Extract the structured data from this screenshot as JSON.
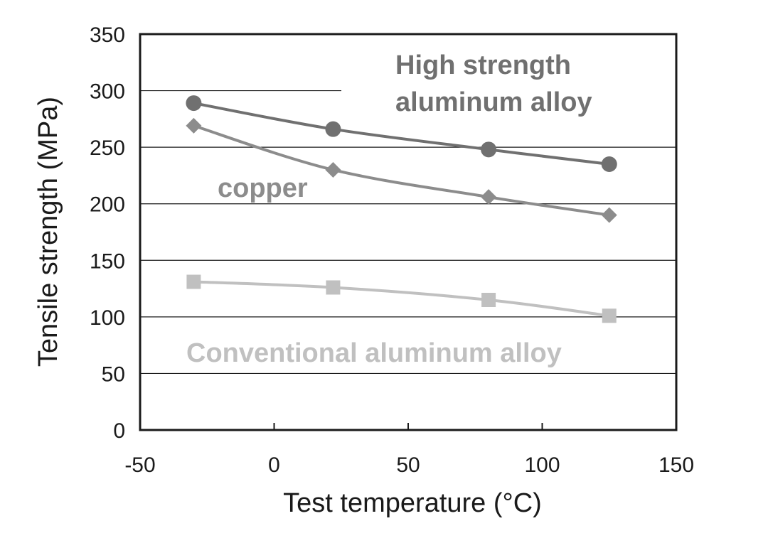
{
  "chart_data": {
    "type": "line",
    "title": "",
    "xlabel": "Test temperature (°C)",
    "ylabel": "Tensile strength (MPa)",
    "xlim": [
      -50,
      150
    ],
    "ylim": [
      0,
      350
    ],
    "xticks": [
      -50,
      0,
      50,
      100,
      150
    ],
    "yticks": [
      0,
      50,
      100,
      150,
      200,
      250,
      300,
      350
    ],
    "grid": "horizontal",
    "legend": "inline labels",
    "series": [
      {
        "name": "High strength aluminum alloy",
        "label_lines": [
          "High strength",
          "aluminum alloy"
        ],
        "marker": "circle",
        "color": "#707070",
        "x": [
          -30,
          22,
          80,
          125
        ],
        "y": [
          289,
          266,
          248,
          235
        ]
      },
      {
        "name": "copper",
        "label_lines": [
          "copper"
        ],
        "marker": "diamond",
        "color": "#8c8c8c",
        "x": [
          -30,
          22,
          80,
          125
        ],
        "y": [
          269,
          230,
          206,
          190
        ]
      },
      {
        "name": "Conventional aluminum alloy",
        "label_lines": [
          "Conventional aluminum alloy"
        ],
        "marker": "square",
        "color": "#c0c0c0",
        "x": [
          -30,
          22,
          80,
          125
        ],
        "y": [
          131,
          126,
          115,
          101
        ]
      }
    ]
  }
}
